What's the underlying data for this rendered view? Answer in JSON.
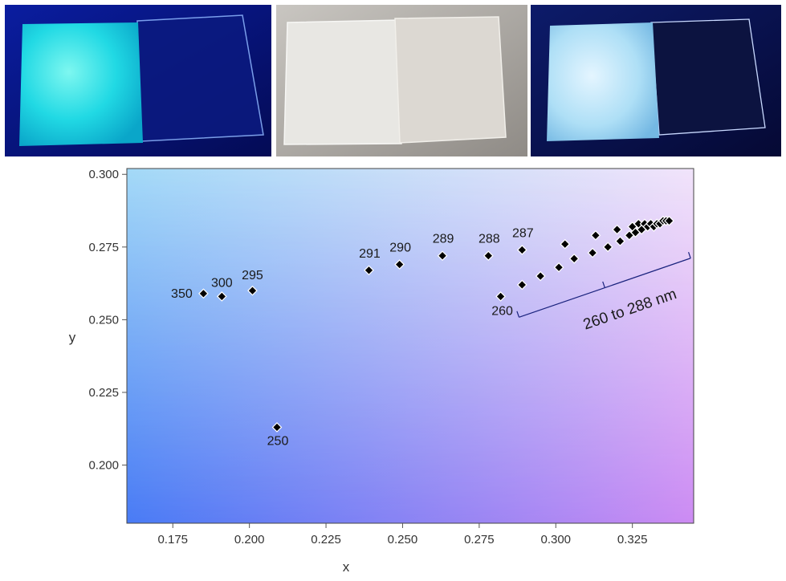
{
  "photos": [
    {
      "name": "uv-illuminated-slides",
      "slide_glow": "#22e6e6",
      "background": "#07117a"
    },
    {
      "name": "daylight-slides",
      "background": "#b8b4ae"
    },
    {
      "name": "uv-illuminated-slides-blue",
      "slide_glow": "#9fd6f2",
      "background": "#08114f"
    }
  ],
  "chart_data": {
    "type": "scatter",
    "xlabel": "x",
    "ylabel": "y",
    "xlim": [
      0.16,
      0.345
    ],
    "ylim": [
      0.18,
      0.302
    ],
    "x_ticks": [
      "0.175",
      "0.200",
      "0.225",
      "0.250",
      "0.275",
      "0.300",
      "0.325"
    ],
    "y_ticks": [
      "0.300",
      "0.275",
      "0.250",
      "0.225",
      "0.200"
    ],
    "grid": false,
    "background_gradient": [
      "#a6dcf7",
      "#f2e6fa",
      "#3a6cf5",
      "#c77df2"
    ],
    "points": [
      {
        "x": 0.185,
        "y": 0.259,
        "label": "350"
      },
      {
        "x": 0.191,
        "y": 0.258,
        "label": "300"
      },
      {
        "x": 0.201,
        "y": 0.26,
        "label": "295"
      },
      {
        "x": 0.209,
        "y": 0.213,
        "label": "250"
      },
      {
        "x": 0.239,
        "y": 0.267,
        "label": "291"
      },
      {
        "x": 0.249,
        "y": 0.269,
        "label": "290"
      },
      {
        "x": 0.263,
        "y": 0.272,
        "label": "289"
      },
      {
        "x": 0.278,
        "y": 0.272,
        "label": "288"
      },
      {
        "x": 0.289,
        "y": 0.274,
        "label": "287"
      },
      {
        "x": 0.282,
        "y": 0.258,
        "label": "260"
      },
      {
        "x": 0.289,
        "y": 0.262
      },
      {
        "x": 0.295,
        "y": 0.265
      },
      {
        "x": 0.301,
        "y": 0.268
      },
      {
        "x": 0.303,
        "y": 0.276
      },
      {
        "x": 0.306,
        "y": 0.271
      },
      {
        "x": 0.312,
        "y": 0.273
      },
      {
        "x": 0.313,
        "y": 0.279
      },
      {
        "x": 0.317,
        "y": 0.275
      },
      {
        "x": 0.32,
        "y": 0.281
      },
      {
        "x": 0.321,
        "y": 0.277
      },
      {
        "x": 0.324,
        "y": 0.279
      },
      {
        "x": 0.325,
        "y": 0.282
      },
      {
        "x": 0.326,
        "y": 0.28
      },
      {
        "x": 0.327,
        "y": 0.283
      },
      {
        "x": 0.328,
        "y": 0.281
      },
      {
        "x": 0.329,
        "y": 0.283
      },
      {
        "x": 0.33,
        "y": 0.282
      },
      {
        "x": 0.331,
        "y": 0.283
      },
      {
        "x": 0.332,
        "y": 0.282
      },
      {
        "x": 0.333,
        "y": 0.283
      },
      {
        "x": 0.334,
        "y": 0.283
      },
      {
        "x": 0.335,
        "y": 0.284
      },
      {
        "x": 0.336,
        "y": 0.284
      },
      {
        "x": 0.337,
        "y": 0.284
      }
    ],
    "bracket_annotation": "260 to 288 nm"
  }
}
